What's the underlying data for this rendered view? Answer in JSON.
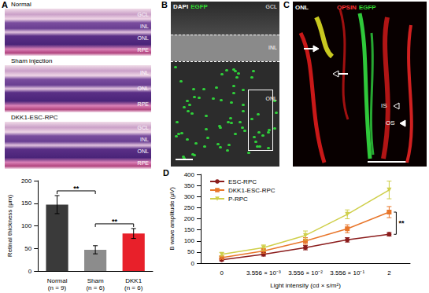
{
  "panels": {
    "A": {
      "label": "A",
      "images": [
        {
          "title": "Normal",
          "layers": [
            "GCL",
            "INL",
            "ONL",
            "RPE"
          ]
        },
        {
          "title": "Sham injection",
          "layers": [
            "INL",
            "ONL",
            "RPE"
          ]
        },
        {
          "title": "DKK1-ESC-RPC",
          "layers": [
            "GCL",
            "INL",
            "ONL",
            "RPE"
          ]
        }
      ]
    },
    "B": {
      "label": "B",
      "stains": [
        {
          "text": "DAPI",
          "color": "#ffffff"
        },
        {
          "text": "EGFP",
          "color": "#33dd33"
        }
      ],
      "layers": [
        "GCL",
        "INL",
        "ONL"
      ]
    },
    "C": {
      "label": "C",
      "stains": [
        {
          "text": "OPSIN",
          "color": "#ff3333"
        },
        {
          "text": "EGFP",
          "color": "#33dd33"
        }
      ],
      "layers": [
        "ONL"
      ],
      "marks": [
        "IS",
        "OS"
      ]
    },
    "D": {
      "label": "D"
    }
  },
  "chart_data": [
    {
      "type": "bar",
      "categories": [
        "Normal\n(n = 9)",
        "Sham\n(n = 6)",
        "DKK1\n(n = 6)"
      ],
      "values": [
        147,
        47,
        83
      ],
      "errors": [
        20,
        9,
        11
      ],
      "colors": [
        "#3a3a3a",
        "#8c8c8c",
        "#e8202a"
      ],
      "ylabel": "Retinal thickness (μm)",
      "ylim": [
        0,
        200
      ],
      "yticks": [
        0,
        50,
        100,
        150,
        200
      ],
      "grid": false,
      "annotations": [
        {
          "text": "**",
          "between": [
            "Normal\n(n = 9)",
            "Sham\n(n = 6)"
          ]
        },
        {
          "text": "**",
          "between": [
            "Sham\n(n = 6)",
            "DKK1\n(n = 6)"
          ]
        }
      ]
    },
    {
      "type": "line",
      "categories": [
        "0",
        "3.556 × 10⁻³",
        "3.556 × 10⁻²",
        "3.556 × 10⁻¹",
        "2"
      ],
      "series": [
        {
          "name": "ESC-RPC",
          "color": "#8b1c1c",
          "marker": "circle",
          "values": [
            15,
            40,
            70,
            105,
            130
          ],
          "errors": [
            5,
            8,
            10,
            10,
            8
          ]
        },
        {
          "name": "DKK1-ESC-RPC",
          "color": "#e8762b",
          "marker": "square",
          "values": [
            25,
            55,
            100,
            155,
            230
          ],
          "errors": [
            6,
            10,
            15,
            18,
            25
          ]
        },
        {
          "name": "P-RPC",
          "color": "#cfcf4a",
          "marker": "triangle-down",
          "values": [
            40,
            70,
            125,
            220,
            330
          ],
          "errors": [
            8,
            12,
            20,
            20,
            40
          ]
        }
      ],
      "xlabel": "Light intensity (cd × s/m²)",
      "ylabel": "B wave amplitude (μV)",
      "ylim": [
        0,
        400
      ],
      "yticks": [
        0,
        50,
        100,
        150,
        200,
        250,
        300,
        350,
        400
      ],
      "grid": false,
      "legend": "upper left",
      "annotations": [
        {
          "text": "**",
          "between": [
            "ESC-RPC",
            "DKK1-ESC-RPC"
          ]
        }
      ]
    }
  ]
}
